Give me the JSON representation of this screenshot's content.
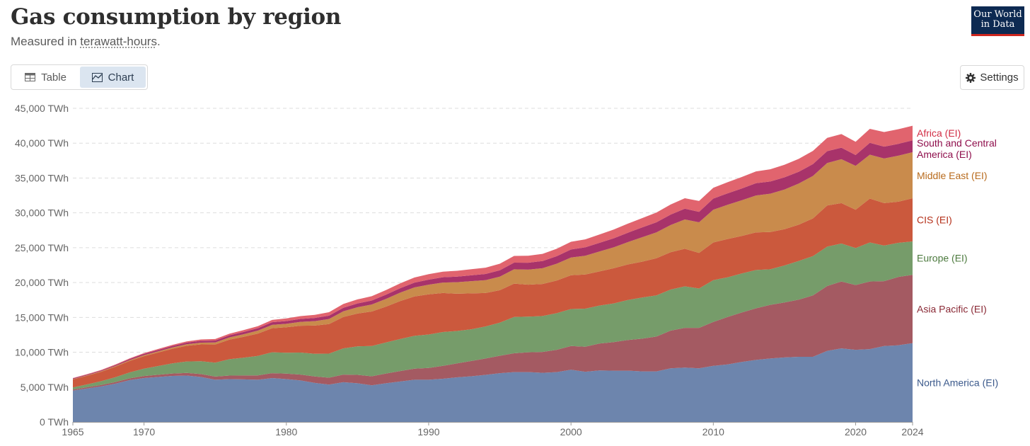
{
  "header": {
    "title": "Gas consumption by region",
    "subtitle_prefix": "Measured in ",
    "subtitle_term": "terawatt-hours",
    "subtitle_suffix": ".",
    "logo_line1": "Our World",
    "logo_line2": "in Data"
  },
  "tabs": [
    {
      "label": "Table",
      "icon": "table-icon",
      "active": false
    },
    {
      "label": "Chart",
      "icon": "chart-icon",
      "active": true
    }
  ],
  "settings_label": "Settings",
  "colors": {
    "North America (EI)": "#6d85ad",
    "Asia Pacific (EI)": "#a45a62",
    "Europe (EI)": "#769c6a",
    "CIS (EI)": "#cb593d",
    "Middle East (EI)": "#c98b4c",
    "South and Central America (EI)": "#a8336a",
    "Africa (EI)": "#e1646e"
  },
  "label_colors": {
    "North America (EI)": "#3c5a8c",
    "Asia Pacific (EI)": "#8a2a36",
    "Europe (EI)": "#4c7a3e",
    "CIS (EI)": "#b5311b",
    "Middle East (EI)": "#b86b1d",
    "South and Central America (EI)": "#8f0f4c",
    "Africa (EI)": "#d22d45"
  },
  "chart_data": {
    "type": "area",
    "stacked": true,
    "title": "Gas consumption by region",
    "subtitle": "Measured in terawatt-hours.",
    "xlabel": "",
    "ylabel": "",
    "x_ticks": [
      1965,
      1970,
      1980,
      1990,
      2000,
      2010,
      2020,
      2024
    ],
    "y_ticks": [
      0,
      5000,
      10000,
      15000,
      20000,
      25000,
      30000,
      35000,
      40000,
      45000
    ],
    "y_tick_labels": [
      "0 TWh",
      "5,000 TWh",
      "10,000 TWh",
      "15,000 TWh",
      "20,000 TWh",
      "25,000 TWh",
      "30,000 TWh",
      "35,000 TWh",
      "40,000 TWh",
      "45,000 TWh"
    ],
    "ylim": [
      0,
      45000
    ],
    "xlim": [
      1965,
      2024
    ],
    "grid": true,
    "legend": "inline-right",
    "x": [
      1965,
      1966,
      1967,
      1968,
      1969,
      1970,
      1971,
      1972,
      1973,
      1974,
      1975,
      1976,
      1977,
      1978,
      1979,
      1980,
      1981,
      1982,
      1983,
      1984,
      1985,
      1986,
      1987,
      1988,
      1989,
      1990,
      1991,
      1992,
      1993,
      1994,
      1995,
      1996,
      1997,
      1998,
      1999,
      2000,
      2001,
      2002,
      2003,
      2004,
      2005,
      2006,
      2007,
      2008,
      2009,
      2010,
      2011,
      2012,
      2013,
      2014,
      2015,
      2016,
      2017,
      2018,
      2019,
      2020,
      2021,
      2022,
      2023,
      2024
    ],
    "series": [
      {
        "name": "North America (EI)",
        "values": [
          4500,
          4800,
          5100,
          5500,
          6000,
          6300,
          6450,
          6600,
          6650,
          6450,
          6050,
          6150,
          6100,
          6050,
          6300,
          6150,
          5950,
          5600,
          5350,
          5700,
          5550,
          5250,
          5550,
          5800,
          6050,
          6050,
          6200,
          6400,
          6550,
          6750,
          7000,
          7150,
          7150,
          7050,
          7150,
          7500,
          7200,
          7400,
          7350,
          7350,
          7250,
          7250,
          7700,
          7800,
          7700,
          8050,
          8250,
          8600,
          8900,
          9100,
          9250,
          9350,
          9350,
          10200,
          10550,
          10350,
          10450,
          10900,
          11000,
          11300
        ]
      },
      {
        "name": "Asia Pacific (EI)",
        "values": [
          150,
          180,
          200,
          230,
          260,
          290,
          320,
          350,
          380,
          420,
          460,
          500,
          560,
          620,
          700,
          780,
          850,
          930,
          1000,
          1100,
          1200,
          1300,
          1400,
          1500,
          1600,
          1700,
          1850,
          2000,
          2200,
          2350,
          2500,
          2700,
          2850,
          3000,
          3200,
          3400,
          3600,
          3850,
          4100,
          4400,
          4700,
          5000,
          5400,
          5700,
          5800,
          6300,
          6800,
          7100,
          7400,
          7700,
          7900,
          8200,
          8800,
          9300,
          9600,
          9300,
          9700,
          9300,
          9800,
          9800
        ]
      },
      {
        "name": "Europe (EI)",
        "values": [
          300,
          400,
          550,
          700,
          850,
          1050,
          1250,
          1450,
          1650,
          1850,
          2000,
          2350,
          2550,
          2800,
          3000,
          3000,
          3150,
          3250,
          3450,
          3750,
          4100,
          4350,
          4450,
          4600,
          4700,
          4800,
          4850,
          4650,
          4550,
          4600,
          4750,
          5200,
          5100,
          5150,
          5250,
          5300,
          5450,
          5450,
          5550,
          5750,
          5900,
          5900,
          5900,
          5950,
          5650,
          6000,
          5700,
          5600,
          5500,
          5100,
          5300,
          5550,
          5650,
          5650,
          5450,
          5300,
          5600,
          5100,
          4900,
          4800
        ]
      },
      {
        "name": "CIS (EI)",
        "values": [
          1150,
          1250,
          1350,
          1500,
          1650,
          1800,
          1950,
          2100,
          2250,
          2400,
          2600,
          2800,
          3000,
          3200,
          3450,
          3650,
          3850,
          4050,
          4250,
          4500,
          4700,
          4950,
          5150,
          5450,
          5650,
          5750,
          5600,
          5350,
          5150,
          4800,
          4650,
          4800,
          4600,
          4600,
          4700,
          4850,
          4900,
          4900,
          5050,
          5100,
          5150,
          5350,
          5350,
          5400,
          5100,
          5400,
          5500,
          5400,
          5400,
          5350,
          5200,
          5200,
          5400,
          5900,
          5800,
          5500,
          6300,
          6100,
          5900,
          6200
        ]
      },
      {
        "name": "Middle East (EI)",
        "values": [
          50,
          60,
          80,
          100,
          120,
          150,
          170,
          190,
          220,
          260,
          290,
          330,
          380,
          430,
          480,
          500,
          560,
          640,
          720,
          820,
          910,
          1000,
          1100,
          1200,
          1300,
          1400,
          1500,
          1650,
          1750,
          1850,
          1950,
          2050,
          2150,
          2250,
          2400,
          2550,
          2700,
          2850,
          3000,
          3200,
          3500,
          3700,
          3900,
          4200,
          4400,
          4700,
          4900,
          5100,
          5300,
          5500,
          5700,
          5900,
          6100,
          6100,
          6300,
          6300,
          6300,
          6400,
          6600,
          6600
        ]
      },
      {
        "name": "South and Central America (EI)",
        "values": [
          100,
          110,
          120,
          140,
          160,
          180,
          200,
          220,
          240,
          260,
          280,
          300,
          320,
          350,
          380,
          400,
          420,
          450,
          480,
          510,
          540,
          570,
          600,
          640,
          680,
          720,
          760,
          800,
          840,
          880,
          920,
          960,
          1000,
          1040,
          1080,
          1150,
          1200,
          1250,
          1300,
          1350,
          1400,
          1450,
          1500,
          1550,
          1500,
          1600,
          1650,
          1700,
          1750,
          1750,
          1750,
          1700,
          1700,
          1700,
          1650,
          1550,
          1700,
          1700,
          1700,
          1700
        ]
      },
      {
        "name": "Africa (EI)",
        "values": [
          50,
          60,
          70,
          80,
          90,
          110,
          130,
          150,
          170,
          190,
          210,
          230,
          260,
          290,
          330,
          370,
          410,
          450,
          500,
          540,
          580,
          620,
          660,
          700,
          740,
          780,
          810,
          840,
          870,
          900,
          930,
          960,
          990,
          1030,
          1070,
          1100,
          1150,
          1200,
          1250,
          1300,
          1350,
          1400,
          1450,
          1500,
          1550,
          1550,
          1600,
          1650,
          1700,
          1750,
          1800,
          1850,
          1900,
          1900,
          1950,
          1900,
          2000,
          2100,
          2100,
          2100
        ]
      }
    ]
  }
}
